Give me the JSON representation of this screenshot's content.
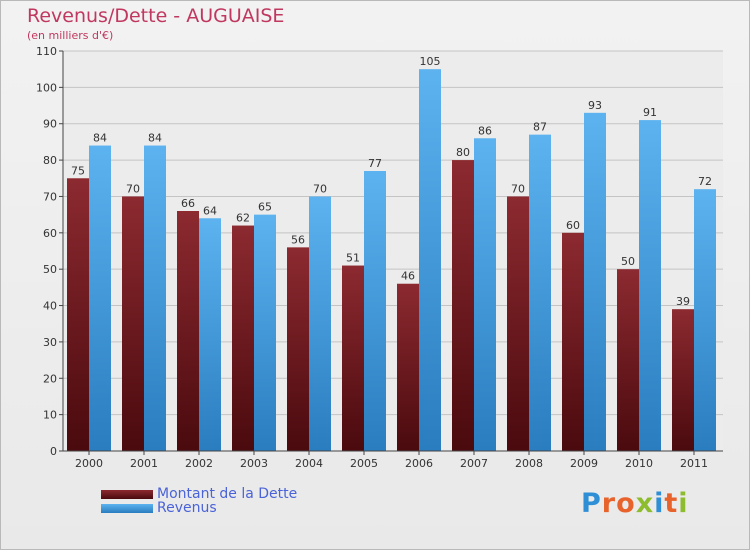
{
  "title": "Revenus/Dette - AUGUAISE",
  "subtitle": "(en milliers d'€)",
  "legend": {
    "debt_label": "Montant de la Dette",
    "revenue_label": "Revenus"
  },
  "brand": {
    "letters": [
      "P",
      "r",
      "o",
      "x",
      "i",
      "t",
      "i"
    ],
    "colors": [
      "#2f8fd6",
      "#e8632b",
      "#e8632b",
      "#8dbd2e",
      "#2f8fd6",
      "#e8632b",
      "#8dbd2e"
    ]
  },
  "chart_data": {
    "type": "bar",
    "title": "Revenus/Dette - AUGUAISE",
    "subtitle": "(en milliers d'€)",
    "xlabel": "",
    "ylabel": "",
    "categories": [
      "2000",
      "2001",
      "2002",
      "2003",
      "2004",
      "2005",
      "2006",
      "2007",
      "2008",
      "2009",
      "2010",
      "2011"
    ],
    "series": [
      {
        "name": "Montant de la Dette",
        "color": "#7b1f25",
        "values": [
          75,
          70,
          66,
          62,
          56,
          51,
          46,
          80,
          70,
          60,
          50,
          39
        ]
      },
      {
        "name": "Revenus",
        "color": "#3f9ee0",
        "values": [
          84,
          84,
          64,
          65,
          70,
          77,
          105,
          86,
          87,
          93,
          91,
          72
        ]
      }
    ],
    "ylim": [
      0,
      110
    ],
    "yticks": [
      0,
      10,
      20,
      30,
      40,
      50,
      60,
      70,
      80,
      90,
      100,
      110
    ],
    "grid": true,
    "legend_position": "bottom-left"
  }
}
